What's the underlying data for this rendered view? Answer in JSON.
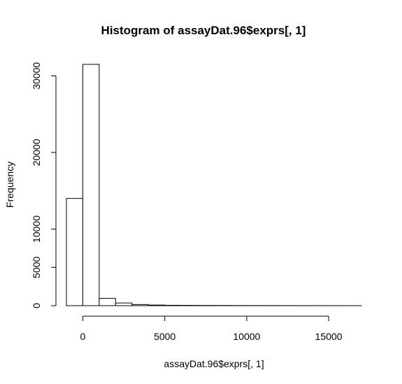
{
  "chart_data": {
    "type": "bar",
    "title": "Histogram of assayDat.96$exprs[, 1]",
    "xlabel": "assayDat.96$exprs[, 1]",
    "ylabel": "Frequency",
    "xlim": [
      -1000,
      17000
    ],
    "ylim": [
      0,
      31500
    ],
    "grid": false,
    "x_ticks": [
      0,
      5000,
      10000,
      15000
    ],
    "x_tick_labels": [
      "0",
      "5000",
      "10000",
      "15000"
    ],
    "y_ticks": [
      0,
      5000,
      10000,
      20000,
      30000
    ],
    "y_tick_labels": [
      "0",
      "5000",
      "10000",
      "20000",
      "30000"
    ],
    "bins": [
      {
        "x0": -1000,
        "x1": 0,
        "count": 14000
      },
      {
        "x0": 0,
        "x1": 1000,
        "count": 31500
      },
      {
        "x0": 1000,
        "x1": 2000,
        "count": 950
      },
      {
        "x0": 2000,
        "x1": 3000,
        "count": 350
      },
      {
        "x0": 3000,
        "x1": 4000,
        "count": 150
      },
      {
        "x0": 4000,
        "x1": 5000,
        "count": 80
      },
      {
        "x0": 5000,
        "x1": 6000,
        "count": 50
      },
      {
        "x0": 6000,
        "x1": 7000,
        "count": 40
      },
      {
        "x0": 7000,
        "x1": 8000,
        "count": 30
      },
      {
        "x0": 8000,
        "x1": 9000,
        "count": 25
      },
      {
        "x0": 9000,
        "x1": 10000,
        "count": 20
      },
      {
        "x0": 10000,
        "x1": 11000,
        "count": 15
      },
      {
        "x0": 11000,
        "x1": 12000,
        "count": 12
      },
      {
        "x0": 12000,
        "x1": 13000,
        "count": 10
      },
      {
        "x0": 13000,
        "x1": 14000,
        "count": 8
      },
      {
        "x0": 14000,
        "x1": 15000,
        "count": 6
      },
      {
        "x0": 15000,
        "x1": 16000,
        "count": 3
      },
      {
        "x0": 16000,
        "x1": 17000,
        "count": 1
      }
    ]
  }
}
